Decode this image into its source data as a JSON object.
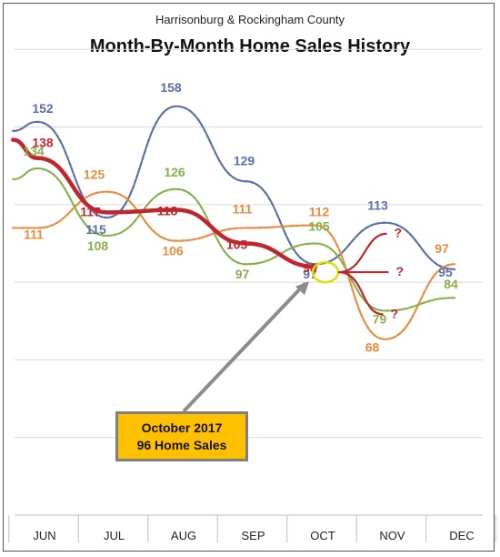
{
  "chart_data": {
    "type": "line",
    "subtitle": "Harrisonburg & Rockingham County",
    "title": "Month-By-Month Home Sales History",
    "categories": [
      "JUN",
      "JUL",
      "AUG",
      "SEP",
      "OCT",
      "NOV",
      "DEC"
    ],
    "ylim": [
      0,
      180
    ],
    "grid": true,
    "legend": "none",
    "series": [
      {
        "color": "#5a6fa6",
        "values": [
          152,
          115,
          158,
          129,
          97,
          113,
          95
        ]
      },
      {
        "color": "#ed8b3c",
        "values": [
          111,
          125,
          106,
          111,
          112,
          68,
          97
        ]
      },
      {
        "color": "#86b04c",
        "values": [
          134,
          108,
          126,
          97,
          105,
          79,
          84
        ]
      },
      {
        "color": "#c0262d",
        "values": [
          138,
          117,
          118,
          105,
          96,
          null,
          null
        ]
      }
    ],
    "projection_marks": [
      "?",
      "?",
      "?"
    ],
    "callout": {
      "line1": "October 2017",
      "line2": "96 Home Sales"
    }
  }
}
